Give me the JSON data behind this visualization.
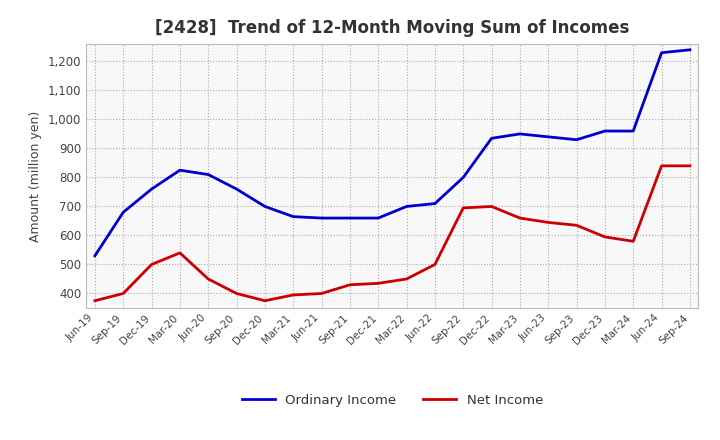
{
  "title": "[2428]  Trend of 12-Month Moving Sum of Incomes",
  "ylabel": "Amount (million yen)",
  "x_labels": [
    "Jun-19",
    "Sep-19",
    "Dec-19",
    "Mar-20",
    "Jun-20",
    "Sep-20",
    "Dec-20",
    "Mar-21",
    "Jun-21",
    "Sep-21",
    "Dec-21",
    "Mar-22",
    "Jun-22",
    "Sep-22",
    "Dec-22",
    "Mar-23",
    "Jun-23",
    "Sep-23",
    "Dec-23",
    "Mar-24",
    "Jun-24",
    "Sep-24"
  ],
  "ordinary_income": [
    530,
    680,
    760,
    825,
    810,
    760,
    700,
    665,
    660,
    660,
    660,
    700,
    710,
    800,
    935,
    950,
    940,
    930,
    960,
    960,
    1230,
    1240
  ],
  "net_income": [
    375,
    400,
    500,
    540,
    450,
    400,
    375,
    395,
    400,
    430,
    435,
    450,
    500,
    695,
    700,
    660,
    645,
    635,
    595,
    580,
    840,
    840
  ],
  "ordinary_color": "#0000cc",
  "net_color": "#cc0000",
  "ylim": [
    350,
    1260
  ],
  "yticks": [
    400,
    500,
    600,
    700,
    800,
    900,
    1000,
    1100,
    1200
  ],
  "bg_color": "#ffffff",
  "plot_bg_color": "#f8f8f8",
  "grid_color": "#aaaaaa",
  "title_color": "#333333"
}
